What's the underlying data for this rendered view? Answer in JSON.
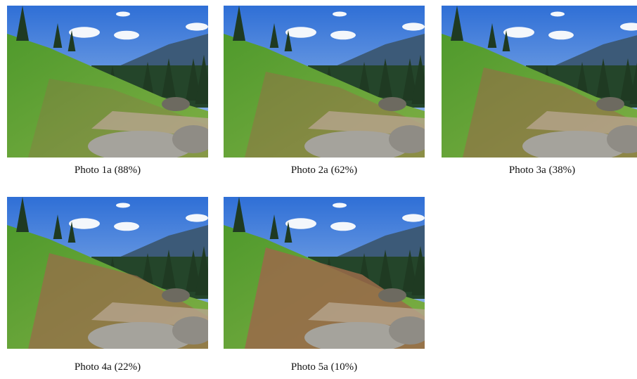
{
  "photos": [
    {
      "caption": "Photo 1a (88%)"
    },
    {
      "caption": "Photo 2a (62%)"
    },
    {
      "caption": "Photo 3a (38%)"
    },
    {
      "caption": "Photo 4a (22%)"
    },
    {
      "caption": "Photo 5a (10%)"
    }
  ]
}
